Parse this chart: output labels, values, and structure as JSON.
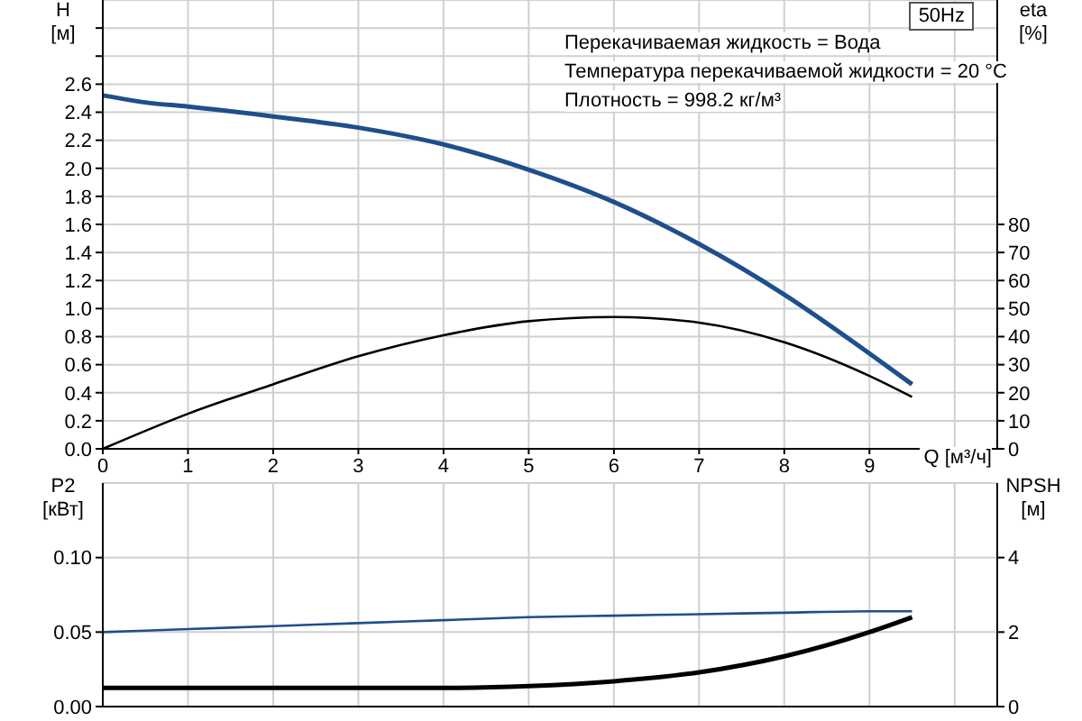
{
  "chart_data": [
    {
      "type": "line",
      "title": "50Hz",
      "xlabel": "Q [м³/ч]",
      "ylabel": "H [м]",
      "y2label": "eta [%]",
      "annotations": [
        "Перекачиваемая жидкость = Вода",
        "Температура перекачиваемой жидкости = 20 °C",
        "Плотность = 998.2 кг/м³"
      ],
      "series": [
        {
          "color": "#1f4e8c",
          "x": [
            0,
            0.5,
            1,
            2,
            3,
            4,
            5,
            6,
            7,
            8,
            9,
            9.5
          ],
          "values": [
            2.52,
            2.47,
            2.44,
            2.37,
            2.29,
            2.17,
            1.99,
            1.76,
            1.46,
            1.1,
            0.68,
            0.46
          ]
        },
        {
          "color": "#000000",
          "axis": "y2",
          "x": [
            0,
            1,
            2,
            3,
            4,
            5,
            6,
            7,
            8,
            9,
            9.5
          ],
          "values": [
            0,
            12.5,
            23,
            33,
            40.5,
            45.5,
            47,
            45,
            38,
            26,
            18.5
          ]
        }
      ],
      "xlim": [
        0,
        10.5
      ],
      "xticks": [
        0,
        1,
        2,
        3,
        4,
        5,
        6,
        7,
        8,
        9,
        {
          "value": 10,
          "label": null
        }
      ],
      "ylim": [
        0,
        3.2
      ],
      "yticks": [
        {
          "value": 0,
          "label": "0.0"
        },
        0.2,
        0.4,
        0.6,
        0.8,
        {
          "value": 1,
          "label": "1.0"
        },
        1.2,
        1.4,
        1.6,
        1.8,
        {
          "value": 2,
          "label": "2.0"
        },
        2.2,
        2.4,
        2.6,
        {
          "value": 2.8,
          "label": null
        },
        {
          "value": 3,
          "label": null
        }
      ],
      "y2lim": [
        0,
        160
      ],
      "y2ticks": [
        0,
        10,
        20,
        30,
        40,
        50,
        60,
        70,
        80
      ],
      "grid": true,
      "legend": false,
      "marker": "none",
      "line_style": "solid"
    },
    {
      "type": "line",
      "ylabel": "P2 [кВт]",
      "y2label": "NPSH [м]",
      "series": [
        {
          "color": "#1f4e8c",
          "x": [
            0,
            1,
            2,
            3,
            4,
            5,
            6,
            7,
            8,
            9,
            9.5
          ],
          "values": [
            0.05,
            0.052,
            0.054,
            0.056,
            0.058,
            0.06,
            0.061,
            0.062,
            0.063,
            0.064,
            0.064
          ]
        },
        {
          "color": "#000000",
          "axis": "y2",
          "x": [
            0,
            0.5,
            3,
            4,
            5,
            6,
            7,
            8,
            9,
            9.5
          ],
          "values": [
            0.5,
            0.5,
            0.5,
            0.5,
            0.55,
            0.68,
            0.92,
            1.35,
            2.0,
            2.4
          ]
        }
      ],
      "xlim": [
        0,
        10.5
      ],
      "xticks": [
        0,
        1,
        2,
        3,
        4,
        5,
        6,
        7,
        8,
        9,
        {
          "value": 10,
          "label": null
        }
      ],
      "ylim": [
        0,
        0.15
      ],
      "yticks": [
        {
          "value": 0,
          "label": "0.00"
        },
        {
          "value": 0.05,
          "label": "0.05"
        },
        {
          "value": 0.1,
          "label": "0.10"
        }
      ],
      "y2lim": [
        0,
        6
      ],
      "y2ticks": [
        0,
        2,
        4
      ],
      "tick_labels": "y",
      "grid": true,
      "legend": false,
      "marker": "none",
      "line_style": "solid"
    }
  ]
}
